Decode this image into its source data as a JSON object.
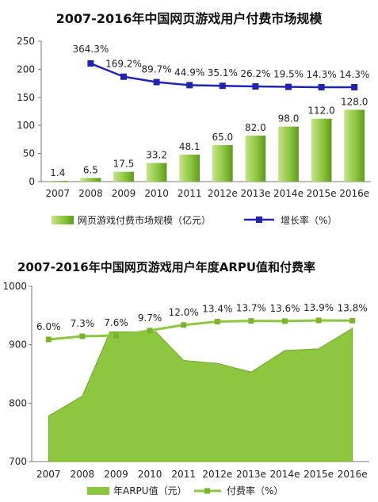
{
  "chart_data": [
    {
      "type": "bar",
      "title": "2007-2016年中国网页游戏用户付费市场规模",
      "categories": [
        "2007",
        "2008",
        "2009",
        "2010",
        "2011",
        "2012e",
        "2013e",
        "2014e",
        "2015e",
        "2016e"
      ],
      "y_ticks": [
        "0",
        "50",
        "100",
        "150",
        "200",
        "250"
      ],
      "ylim": [
        0,
        250
      ],
      "series": [
        {
          "name": "网页游戏付费市场规模（亿元）",
          "type": "bar",
          "values": [
            1.4,
            6.5,
            17.5,
            33.2,
            48.1,
            65.0,
            82.0,
            98.0,
            112.0,
            128.0
          ],
          "labels": [
            "1.4",
            "6.5",
            "17.5",
            "33.2",
            "48.1",
            "65.0",
            "82.0",
            "98.0",
            "112.0",
            "128.0"
          ],
          "color": "#8dc63f"
        },
        {
          "name": "增长率（%）",
          "type": "line",
          "values": [
            null,
            364.3,
            169.2,
            89.7,
            44.9,
            35.1,
            26.2,
            19.5,
            14.3,
            14.3
          ],
          "labels": [
            "",
            "364.3%",
            "169.2%",
            "89.7%",
            "44.9%",
            "35.1%",
            "26.2%",
            "19.5%",
            "14.3%",
            "14.3%"
          ],
          "color": "#1f23b4"
        }
      ],
      "legend_position": "bottom"
    },
    {
      "type": "area",
      "title": "2007-2016年中国网页游戏用户年度ARPU值和付费率",
      "categories": [
        "2007",
        "2008",
        "2009",
        "2010",
        "2011",
        "2012e",
        "2013e",
        "2014e",
        "2015e",
        "2016e"
      ],
      "y_ticks": [
        "700",
        "800",
        "900",
        "1000"
      ],
      "ylim": [
        700,
        1000
      ],
      "series": [
        {
          "name": "年ARPU值（元）",
          "type": "area",
          "values": [
            778,
            812,
            922,
            922,
            873,
            868,
            853,
            890,
            893,
            928
          ],
          "color": "#8dc63f"
        },
        {
          "name": "付费率（%）",
          "type": "line",
          "values": [
            6.0,
            7.3,
            7.6,
            9.7,
            12.0,
            13.4,
            13.7,
            13.6,
            13.9,
            13.8
          ],
          "labels": [
            "6.0%",
            "7.3%",
            "7.6%",
            "9.7%",
            "12.0%",
            "13.4%",
            "13.7%",
            "13.6%",
            "13.9%",
            "13.8%"
          ],
          "color": "#8dc63f"
        }
      ],
      "legend_position": "bottom"
    }
  ]
}
